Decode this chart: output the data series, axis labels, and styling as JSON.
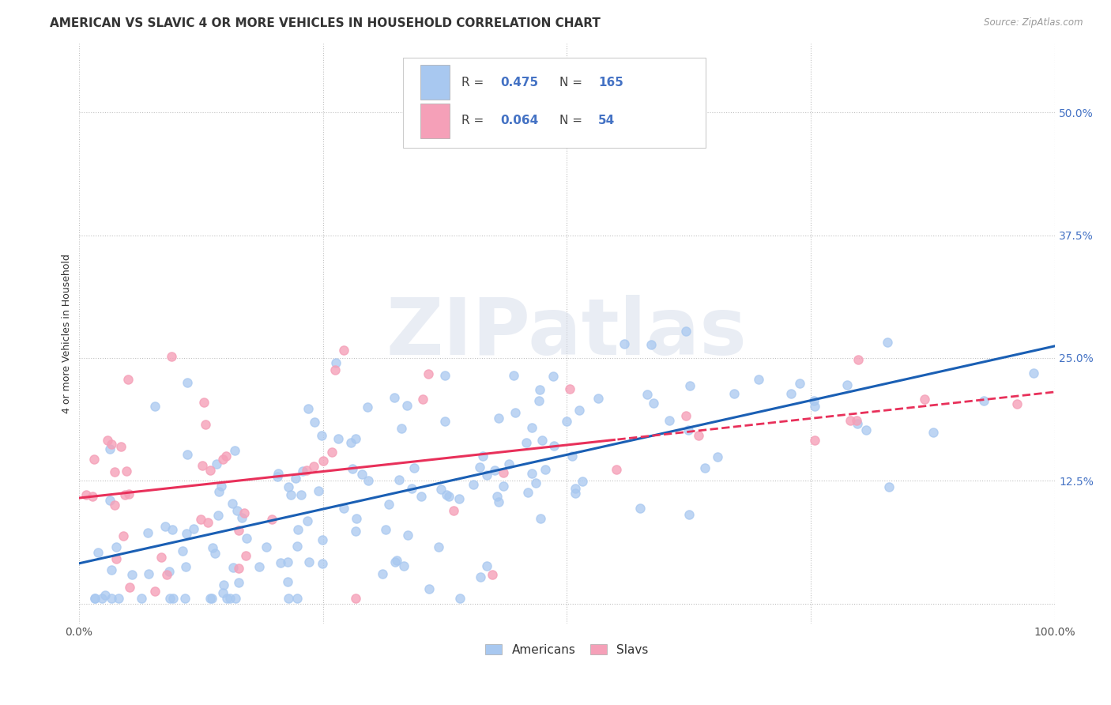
{
  "title": "AMERICAN VS SLAVIC 4 OR MORE VEHICLES IN HOUSEHOLD CORRELATION CHART",
  "source": "Source: ZipAtlas.com",
  "ylabel": "4 or more Vehicles in Household",
  "watermark": "ZIPatlas",
  "xlim": [
    0,
    1.0
  ],
  "ylim": [
    -0.02,
    0.57
  ],
  "xticks": [
    0.0,
    0.25,
    0.5,
    0.75,
    1.0
  ],
  "xticklabels": [
    "0.0%",
    "",
    "",
    "",
    "100.0%"
  ],
  "yticks": [
    0.0,
    0.125,
    0.25,
    0.375,
    0.5
  ],
  "yticklabels": [
    "",
    "12.5%",
    "25.0%",
    "37.5%",
    "50.0%"
  ],
  "legend_r_american": "0.475",
  "legend_n_american": "165",
  "legend_r_slavic": "0.064",
  "legend_n_slavic": "54",
  "american_color": "#a8c8f0",
  "slavic_color": "#f5a0b8",
  "american_line_color": "#1a5fb4",
  "slavic_line_solid_color": "#e8305a",
  "slavic_line_dashed_color": "#e8305a",
  "background_color": "#ffffff",
  "grid_color": "#bbbbbb",
  "title_fontsize": 11,
  "axis_fontsize": 9,
  "tick_fontsize": 10,
  "legend_fontsize": 11,
  "am_line_intercept": 0.05,
  "am_line_slope": 0.185,
  "sl_line_intercept": 0.115,
  "sl_line_slope": 0.05
}
